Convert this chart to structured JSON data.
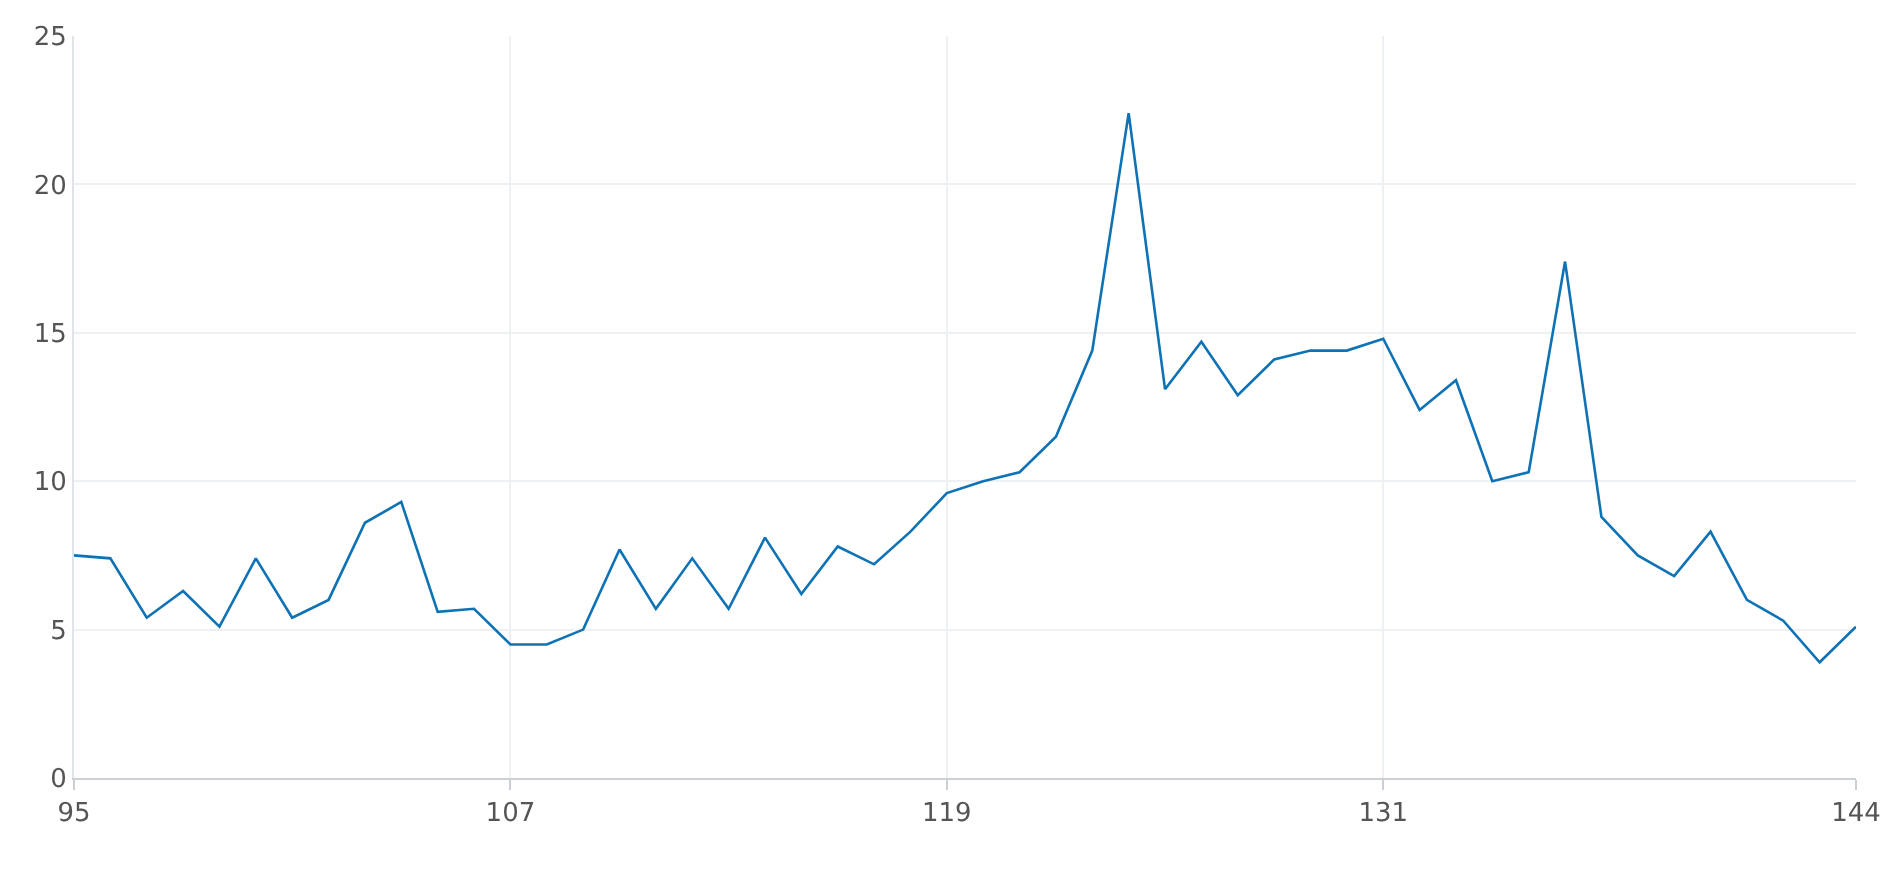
{
  "chart_data": {
    "type": "line",
    "x": [
      95,
      96,
      97,
      98,
      99,
      100,
      101,
      102,
      103,
      104,
      105,
      106,
      107,
      108,
      109,
      110,
      111,
      112,
      113,
      114,
      115,
      116,
      117,
      118,
      119,
      120,
      121,
      122,
      123,
      124,
      125,
      126,
      127,
      128,
      129,
      130,
      131,
      132,
      133,
      134,
      135,
      136,
      137,
      138,
      139,
      140,
      141,
      142,
      143,
      144
    ],
    "series": [
      {
        "color": "#0e72b5",
        "values": [
          7.5,
          7.4,
          5.4,
          6.3,
          5.1,
          7.4,
          5.4,
          6.0,
          8.6,
          9.3,
          5.6,
          5.7,
          4.5,
          4.5,
          5.0,
          7.7,
          5.7,
          7.4,
          5.7,
          8.1,
          6.2,
          7.8,
          7.2,
          8.3,
          9.6,
          10.0,
          10.3,
          11.5,
          14.4,
          22.4,
          13.1,
          14.7,
          12.9,
          14.1,
          14.4,
          14.4,
          14.8,
          12.4,
          13.4,
          10.0,
          10.3,
          17.4,
          8.8,
          7.5,
          6.8,
          8.3,
          6.0,
          5.3,
          3.9,
          5.1
        ]
      }
    ],
    "xlim": [
      95,
      144
    ],
    "xticks": [
      95,
      107,
      119,
      131,
      144
    ],
    "ylim": [
      0,
      25
    ],
    "yticks": [
      0,
      5,
      10,
      15,
      20,
      25
    ],
    "grid": true,
    "marker": "none",
    "line_style": "solid"
  }
}
